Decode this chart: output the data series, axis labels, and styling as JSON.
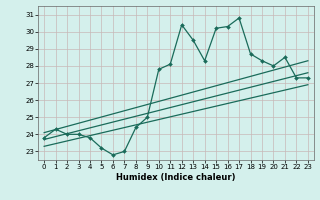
{
  "xlabel": "Humidex (Indice chaleur)",
  "bg_color": "#d4f0ec",
  "grid_color": "#c8b8b8",
  "line_color": "#1a6b5a",
  "xlim": [
    -0.5,
    23.5
  ],
  "ylim": [
    22.5,
    31.5
  ],
  "xticks": [
    0,
    1,
    2,
    3,
    4,
    5,
    6,
    7,
    8,
    9,
    10,
    11,
    12,
    13,
    14,
    15,
    16,
    17,
    18,
    19,
    20,
    21,
    22,
    23
  ],
  "yticks": [
    23,
    24,
    25,
    26,
    27,
    28,
    29,
    30,
    31
  ],
  "zigzag_x": [
    0,
    1,
    2,
    3,
    4,
    5,
    6,
    7,
    8,
    9,
    10,
    11,
    12,
    13,
    14,
    15,
    16,
    17,
    18,
    19,
    20,
    21,
    22,
    23
  ],
  "zigzag_y": [
    23.8,
    24.3,
    24.0,
    24.0,
    23.8,
    23.2,
    22.8,
    23.0,
    24.4,
    25.0,
    27.8,
    28.1,
    30.4,
    29.5,
    28.3,
    30.2,
    30.3,
    30.8,
    28.7,
    28.3,
    28.0,
    28.5,
    27.3,
    27.3
  ],
  "trend1_x": [
    0,
    23
  ],
  "trend1_y": [
    24.1,
    28.3
  ],
  "trend2_x": [
    0,
    23
  ],
  "trend2_y": [
    23.7,
    27.6
  ],
  "trend3_x": [
    0,
    23
  ],
  "trend3_y": [
    23.3,
    26.9
  ]
}
